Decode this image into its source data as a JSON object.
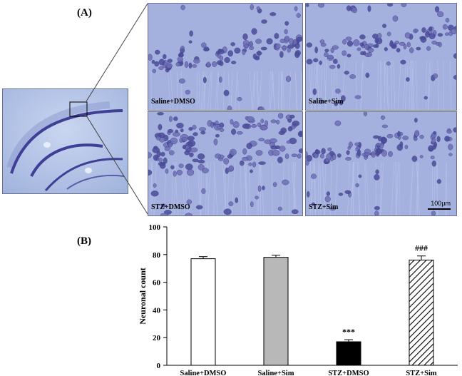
{
  "panels": {
    "label_a": "(A)",
    "label_b": "(B)"
  },
  "micrographs": {
    "saline_dmso": "Saline+DMSO",
    "saline_sim": "Saline+Sim",
    "stz_dmso": "STZ+DMSO",
    "stz_sim": "STZ+Sim",
    "scale_bar": "100µm"
  },
  "colors": {
    "stain_background": "#a4b1df",
    "stain_cells": "#4b4c9a"
  },
  "chart_data": {
    "type": "bar",
    "categories": [
      "Saline+DMSO",
      "Saline+Sim",
      "STZ+DMSO",
      "STZ+Sim"
    ],
    "values": [
      77,
      78,
      17,
      76
    ],
    "errors": [
      1.5,
      1.5,
      1.5,
      3
    ],
    "fills": [
      "white",
      "#b8b8b8",
      "black",
      "hatched"
    ],
    "annotations": [
      "",
      "",
      "***",
      "###"
    ],
    "ylabel": "Neuronal count",
    "xlabel": "",
    "ylim": [
      0,
      100
    ],
    "yticks": [
      0,
      20,
      40,
      60,
      80,
      100
    ],
    "grid": false
  }
}
